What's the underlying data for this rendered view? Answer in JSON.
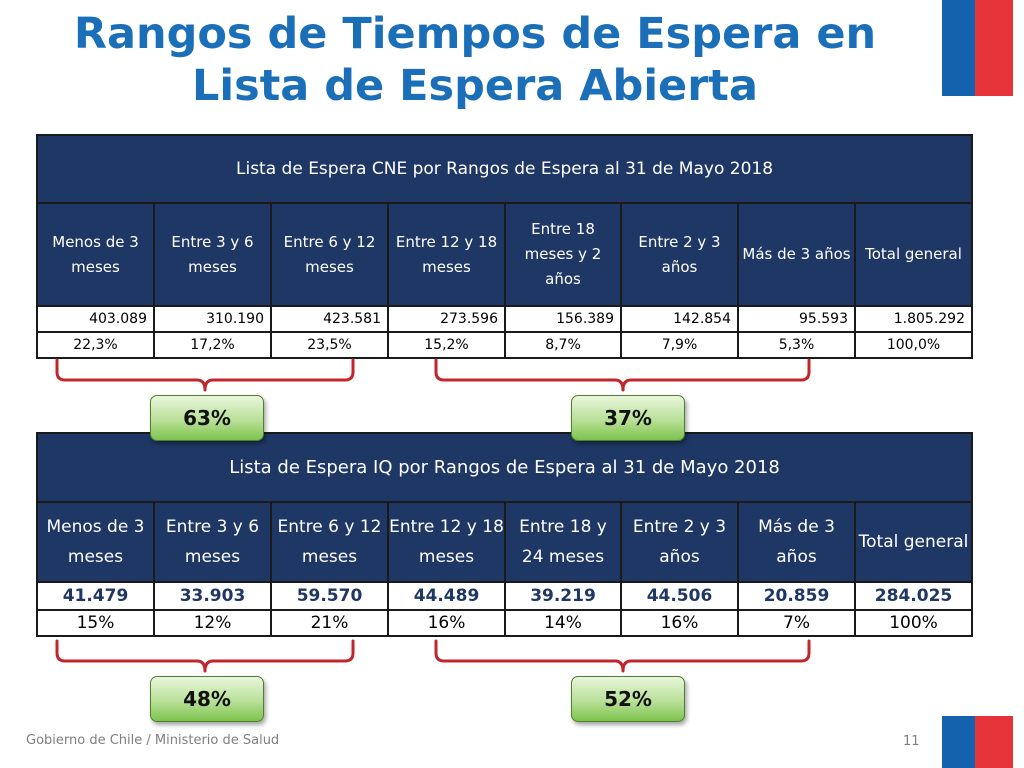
{
  "title_line1": "Rangos de Tiempos de Espera en",
  "title_line2": "Lista de Espera Abierta",
  "table_cne": {
    "title": "Lista de Espera CNE por Rangos de Espera al 31 de Mayo 2018",
    "headers": [
      "Menos de 3 meses",
      "Entre 3 y 6 meses",
      "Entre 6 y 12 meses",
      "Entre 12 y 18 meses",
      "Entre 18 meses y 2 años",
      "Entre 2 y 3 años",
      "Más de 3 años",
      "Total general"
    ],
    "values": [
      "403.089",
      "310.190",
      "423.581",
      "273.596",
      "156.389",
      "142.854",
      "95.593",
      "1.805.292"
    ],
    "percents": [
      "22,3%",
      "17,2%",
      "23,5%",
      "15,2%",
      "8,7%",
      "7,9%",
      "5,3%",
      "100,0%"
    ]
  },
  "badges_cne": [
    "63%",
    "37%"
  ],
  "table_iq": {
    "title": "Lista de Espera IQ por Rangos de Espera al 31 de Mayo 2018",
    "headers": [
      "Menos de 3 meses",
      "Entre 3 y 6 meses",
      "Entre 6 y 12 meses",
      "Entre 12 y 18 meses",
      "Entre 18 y 24 meses",
      "Entre 2 y 3 años",
      "Más de 3 años",
      "Total general"
    ],
    "values": [
      "41.479",
      "33.903",
      "59.570",
      "44.489",
      "39.219",
      "44.506",
      "20.859",
      "284.025"
    ],
    "percents": [
      "15%",
      "12%",
      "21%",
      "16%",
      "14%",
      "16%",
      "7%",
      "100%"
    ]
  },
  "badges_iq": [
    "48%",
    "52%"
  ],
  "footer": "Gobierno de Chile / Ministerio de Salud",
  "page_number": "11",
  "colors": {
    "title": "#1b6fb8",
    "table_header": "#1f3764",
    "bracket": "#c0262c",
    "badge": "#7cc44d",
    "flag_blue": "#1462ad",
    "flag_red": "#e63339"
  }
}
